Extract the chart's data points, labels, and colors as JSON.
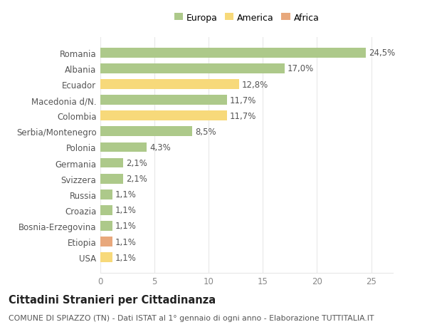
{
  "categories": [
    "Romania",
    "Albania",
    "Ecuador",
    "Macedonia d/N.",
    "Colombia",
    "Serbia/Montenegro",
    "Polonia",
    "Germania",
    "Svizzera",
    "Russia",
    "Croazia",
    "Bosnia-Erzegovina",
    "Etiopia",
    "USA"
  ],
  "values": [
    24.5,
    17.0,
    12.8,
    11.7,
    11.7,
    8.5,
    4.3,
    2.1,
    2.1,
    1.1,
    1.1,
    1.1,
    1.1,
    1.1
  ],
  "labels": [
    "24,5%",
    "17,0%",
    "12,8%",
    "11,7%",
    "11,7%",
    "8,5%",
    "4,3%",
    "2,1%",
    "2,1%",
    "1,1%",
    "1,1%",
    "1,1%",
    "1,1%",
    "1,1%"
  ],
  "colors": [
    "#adc98a",
    "#adc98a",
    "#f7d97a",
    "#adc98a",
    "#f7d97a",
    "#adc98a",
    "#adc98a",
    "#adc98a",
    "#adc98a",
    "#adc98a",
    "#adc98a",
    "#adc98a",
    "#e8a87c",
    "#f7d97a"
  ],
  "legend_labels": [
    "Europa",
    "America",
    "Africa"
  ],
  "legend_colors": [
    "#adc98a",
    "#f7d97a",
    "#e8a87c"
  ],
  "title": "Cittadini Stranieri per Cittadinanza",
  "subtitle": "COMUNE DI SPIAZZO (TN) - Dati ISTAT al 1° gennaio di ogni anno - Elaborazione TUTTITALIA.IT",
  "xlim": [
    0,
    27
  ],
  "xticks": [
    0,
    5,
    10,
    15,
    20,
    25
  ],
  "background_color": "#ffffff",
  "grid_color": "#e8e8e8",
  "bar_height": 0.62,
  "value_label_fontsize": 8.5,
  "title_fontsize": 10.5,
  "subtitle_fontsize": 7.8,
  "ytick_fontsize": 8.5,
  "xtick_fontsize": 8.5,
  "legend_fontsize": 9
}
